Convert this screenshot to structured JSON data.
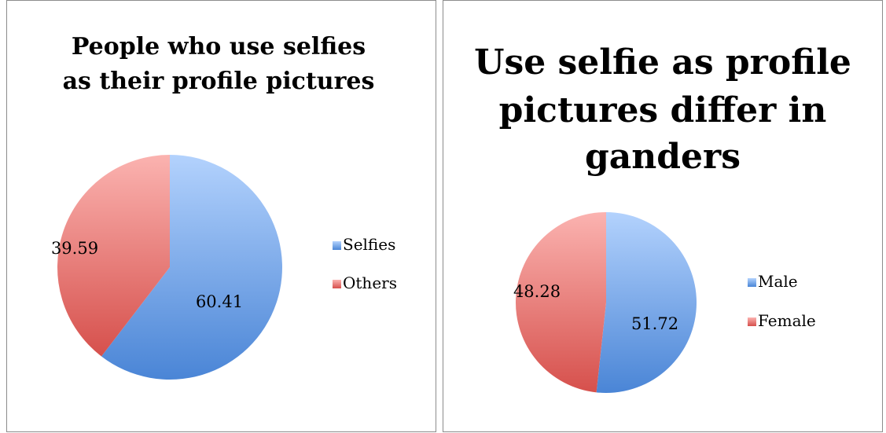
{
  "chart_data": [
    {
      "type": "pie",
      "title": "People who use selfies as their profile pictures",
      "title_lines": [
        "People who use selfies",
        "as their profile pictures"
      ],
      "categories": [
        "Selfies",
        "Others"
      ],
      "values": [
        60.41,
        39.59
      ],
      "data_labels": [
        "60.41",
        "39.59"
      ],
      "colors": [
        "#5b93df",
        "#df5f5c"
      ],
      "legend_position": "right"
    },
    {
      "type": "pie",
      "title": "Use selfie as profile pictures differ in ganders",
      "title_lines": [
        "Use selfie as profile",
        "pictures differ in",
        "ganders"
      ],
      "categories": [
        "Male",
        "Female"
      ],
      "values": [
        51.72,
        48.28
      ],
      "data_labels": [
        "51.72",
        "48.28"
      ],
      "colors": [
        "#5b93df",
        "#df5f5c"
      ],
      "legend_position": "right"
    }
  ]
}
